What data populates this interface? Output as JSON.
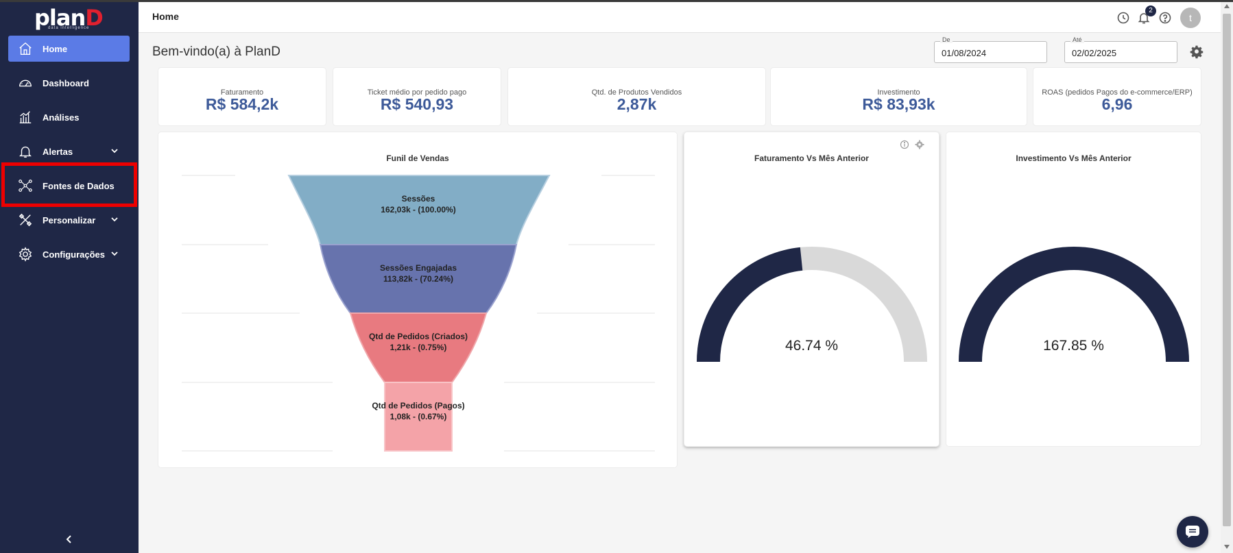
{
  "app": {
    "brand": "planD",
    "tagline": "data intelligence",
    "colors": {
      "sidebar": "#1f2746",
      "active": "#5b7be6",
      "kpi_value": "#3d5a99",
      "highlight": "#ee0000",
      "gauge_fill": "#1f2746",
      "gauge_track": "#d9d9d9"
    }
  },
  "sidebar": {
    "items": [
      {
        "label": "Home",
        "icon": "home-icon",
        "active": true
      },
      {
        "label": "Dashboard",
        "icon": "speedometer-icon"
      },
      {
        "label": "Análises",
        "icon": "bar-chart-icon"
      },
      {
        "label": "Alertas",
        "icon": "bell-icon",
        "expandable": true
      },
      {
        "label": "Fontes de Dados",
        "icon": "network-icon"
      },
      {
        "label": "Personalizar",
        "icon": "tools-icon",
        "expandable": true
      },
      {
        "label": "Configurações",
        "icon": "gear-icon",
        "expandable": true
      }
    ],
    "collapse_icon": "chevron-left-icon"
  },
  "header": {
    "breadcrumb": "Home",
    "notifications_count": "2",
    "avatar_letter": "t",
    "icons": [
      "history-icon",
      "bell-icon",
      "help-icon"
    ]
  },
  "page": {
    "welcome": "Bem-vindo(a) à PlanD",
    "date_from_label": "De",
    "date_from": "01/08/2024",
    "date_to_label": "Até",
    "date_to": "02/02/2025"
  },
  "kpis": [
    {
      "title": "Faturamento",
      "value": "R$ 584,2k"
    },
    {
      "title": "Ticket médio por pedido pago",
      "value": "R$ 540,93"
    },
    {
      "title": "Qtd. de Produtos Vendidos",
      "value": "2,87k"
    },
    {
      "title": "Investimento",
      "value": "R$ 83,93k"
    },
    {
      "title": "ROAS (pedidos Pagos do e-commerce/ERP)",
      "value": "6,96"
    }
  ],
  "funnel": {
    "title": "Funil de Vendas",
    "stages": [
      {
        "name": "Sessões",
        "detail": "162,03k - (100.00%)",
        "color": "#82adc6"
      },
      {
        "name": "Sessões Engajadas",
        "detail": "113,82k - (70.24%)",
        "color": "#6773ad"
      },
      {
        "name": "Qtd de Pedidos (Criados)",
        "detail": "1,21k - (0.75%)",
        "color": "#e87a80"
      },
      {
        "name": "Qtd de Pedidos (Pagos)",
        "detail": "1,08k - (0.67%)",
        "color": "#f4a3a8"
      }
    ]
  },
  "gauges": [
    {
      "title": "Faturamento Vs Mês Anterior",
      "value": 46.74,
      "label": "46.74 %"
    },
    {
      "title": "Investimento Vs Mês Anterior",
      "value": 167.85,
      "label": "167.85 %"
    }
  ]
}
